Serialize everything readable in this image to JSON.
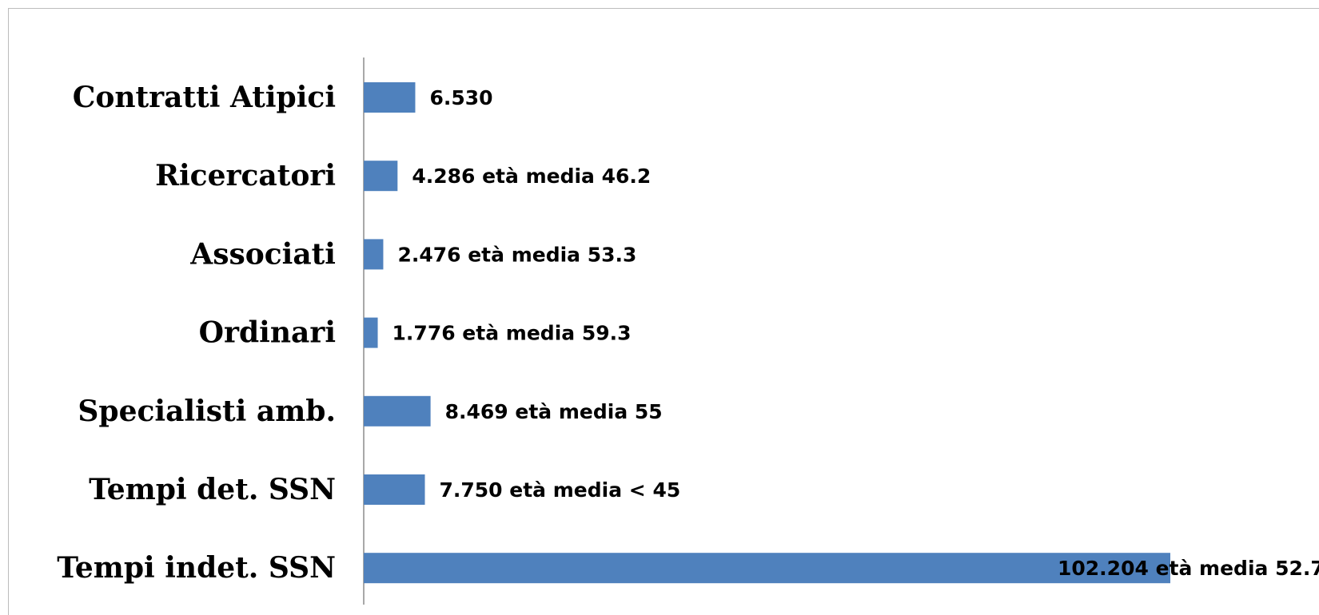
{
  "chart_data": {
    "type": "bar",
    "orientation": "horizontal",
    "title": "",
    "xlabel": "",
    "ylabel": "",
    "categories": [
      "Contratti Atipici",
      "Ricercatori",
      "Associati",
      "Ordinari",
      "Specialisti amb.",
      "Tempi det. SSN",
      "Tempi indet. SSN"
    ],
    "values": [
      6530,
      4286,
      2476,
      1776,
      8469,
      7750,
      102204
    ],
    "data_labels": [
      "6.530",
      "4.286 età media 46.2",
      "2.476 età media 53.3",
      "1.776 età media 59.3",
      "8.469 età media 55",
      "7.750 età media < 45",
      "102.204 età media 52.7"
    ],
    "grid": false,
    "legend": "none",
    "colors": {
      "bar": "#4f81bd",
      "axis": "#8c8c8c"
    }
  }
}
